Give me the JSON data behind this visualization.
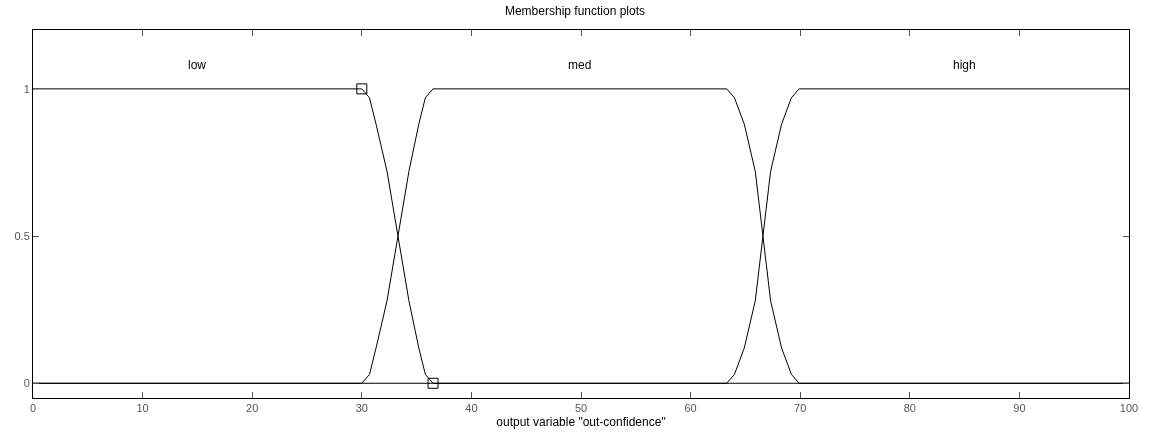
{
  "chart_data": {
    "type": "line",
    "title": "Membership function plots",
    "xlabel": "output variable \"out-confidence\"",
    "xlim": [
      0,
      100
    ],
    "xticks": [
      0,
      10,
      20,
      30,
      40,
      50,
      60,
      70,
      80,
      90,
      100
    ],
    "ylim": [
      -0.05,
      1.2
    ],
    "yticks": [
      0,
      0.5,
      1
    ],
    "legend": false,
    "marker": "none",
    "series": [
      {
        "name": "low",
        "color": "#000000",
        "x": [
          0,
          30,
          30.7,
          31.3,
          32.3,
          33.3,
          34.3,
          35.2,
          35.8,
          36.5,
          100
        ],
        "values": [
          1,
          1,
          0.97,
          0.88,
          0.72,
          0.5,
          0.28,
          0.12,
          0.03,
          0,
          0
        ]
      },
      {
        "name": "med",
        "color": "#000000",
        "x": [
          0,
          30,
          30.7,
          31.3,
          32.3,
          33.3,
          34.3,
          35.2,
          35.8,
          36.5,
          63.3,
          64.0,
          64.9,
          65.9,
          66.6,
          67.3,
          68.3,
          69.2,
          69.9,
          100
        ],
        "values": [
          0,
          0,
          0.03,
          0.12,
          0.28,
          0.5,
          0.72,
          0.88,
          0.97,
          1,
          1,
          0.97,
          0.88,
          0.72,
          0.5,
          0.28,
          0.12,
          0.03,
          0,
          0
        ]
      },
      {
        "name": "high",
        "color": "#000000",
        "x": [
          0,
          63.3,
          64.0,
          64.9,
          65.9,
          66.6,
          67.3,
          68.3,
          69.2,
          69.9,
          100
        ],
        "values": [
          0,
          0,
          0.03,
          0.12,
          0.28,
          0.5,
          0.72,
          0.88,
          0.97,
          1,
          1
        ]
      },
      {
        "type": "scatter",
        "color": "#000000",
        "marker": "square",
        "x": [
          30,
          36.5
        ],
        "values": [
          1,
          0
        ]
      }
    ]
  }
}
